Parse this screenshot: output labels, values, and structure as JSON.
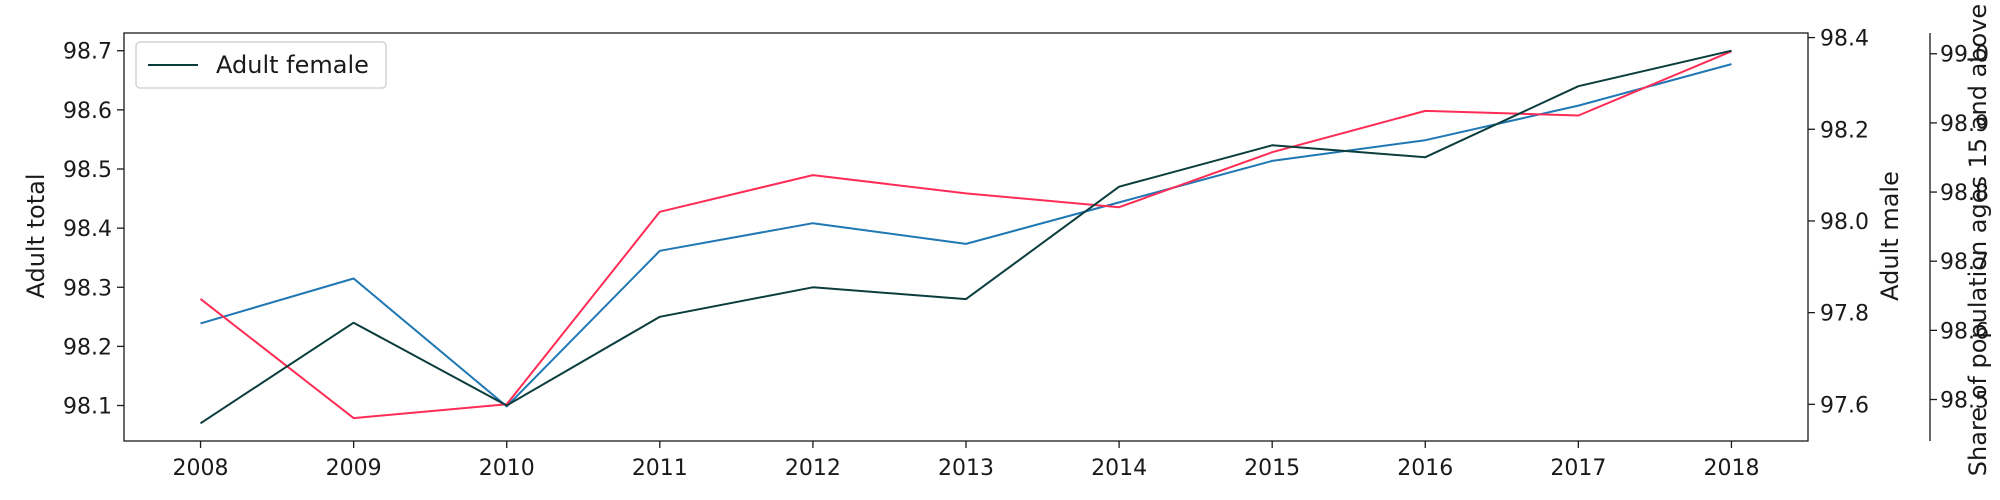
{
  "chart_data": {
    "type": "line",
    "x": [
      2008,
      2009,
      2010,
      2011,
      2012,
      2013,
      2014,
      2015,
      2016,
      2017,
      2018
    ],
    "x_tick_labels": [
      "2008",
      "2009",
      "2010",
      "2011",
      "2012",
      "2013",
      "2014",
      "2015",
      "2016",
      "2017",
      "2018"
    ],
    "series": [
      {
        "name": "Adult female",
        "axis": "left",
        "color": "#0b3d3d",
        "values": [
          98.07,
          98.24,
          98.1,
          98.25,
          98.3,
          98.28,
          98.47,
          98.54,
          98.52,
          98.64,
          98.7
        ]
      },
      {
        "axis": "right",
        "color": "#ff2d55",
        "values": [
          97.83,
          97.57,
          97.6,
          98.02,
          98.1,
          98.06,
          98.03,
          98.15,
          98.24,
          98.23,
          98.37
        ]
      },
      {
        "axis": "far_right",
        "color": "#1f77b4",
        "values": [
          98.61,
          98.675,
          98.49,
          98.715,
          98.755,
          98.725,
          98.785,
          98.845,
          98.875,
          98.925,
          98.985
        ]
      }
    ],
    "axes": {
      "left": {
        "label": "Adult total",
        "ticks": [
          "98.1",
          "98.2",
          "98.3",
          "98.4",
          "98.5",
          "98.6",
          "98.7"
        ],
        "tick_values": [
          98.1,
          98.2,
          98.3,
          98.4,
          98.5,
          98.6,
          98.7
        ],
        "range": [
          98.04,
          98.73
        ]
      },
      "right": {
        "label": "Adult male",
        "ticks": [
          "97.6",
          "97.8",
          "98.0",
          "98.2",
          "98.4"
        ],
        "tick_values": [
          97.6,
          97.8,
          98.0,
          98.2,
          98.4
        ],
        "range": [
          97.52,
          98.41
        ]
      },
      "far_right": {
        "label": "Share of population ages 15 and above",
        "ticks": [
          "98.5",
          "98.6",
          "98.7",
          "98.8",
          "98.9",
          "99.0"
        ],
        "tick_values": [
          98.5,
          98.6,
          98.7,
          98.8,
          98.9,
          99.0
        ],
        "range": [
          98.44,
          99.03
        ]
      }
    },
    "legend": {
      "placement": "top-left",
      "entries": [
        "Adult female"
      ]
    },
    "grid": false
  }
}
